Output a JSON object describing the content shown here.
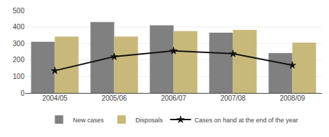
{
  "chart_data": {
    "type": "bar",
    "categories": [
      "2004/05",
      "2005/06",
      "2006/07",
      "2007/08",
      "2008/09"
    ],
    "series": [
      {
        "name": "New cases",
        "type": "bar",
        "color": "#808080",
        "values": [
          310,
          430,
          410,
          365,
          242
        ]
      },
      {
        "name": "Disposals",
        "type": "bar",
        "color": "#C8B87A",
        "values": [
          342,
          342,
          375,
          382,
          305
        ]
      },
      {
        "name": "Cases on hand at the end of the year",
        "type": "line",
        "color": "#111111",
        "marker": "star",
        "line_style": "solid",
        "values": [
          135,
          220,
          255,
          238,
          168
        ]
      }
    ],
    "ylim": [
      0,
      500
    ],
    "yticks": [
      0,
      100,
      200,
      300,
      400,
      500
    ],
    "grid": true,
    "legend": "bottom"
  }
}
